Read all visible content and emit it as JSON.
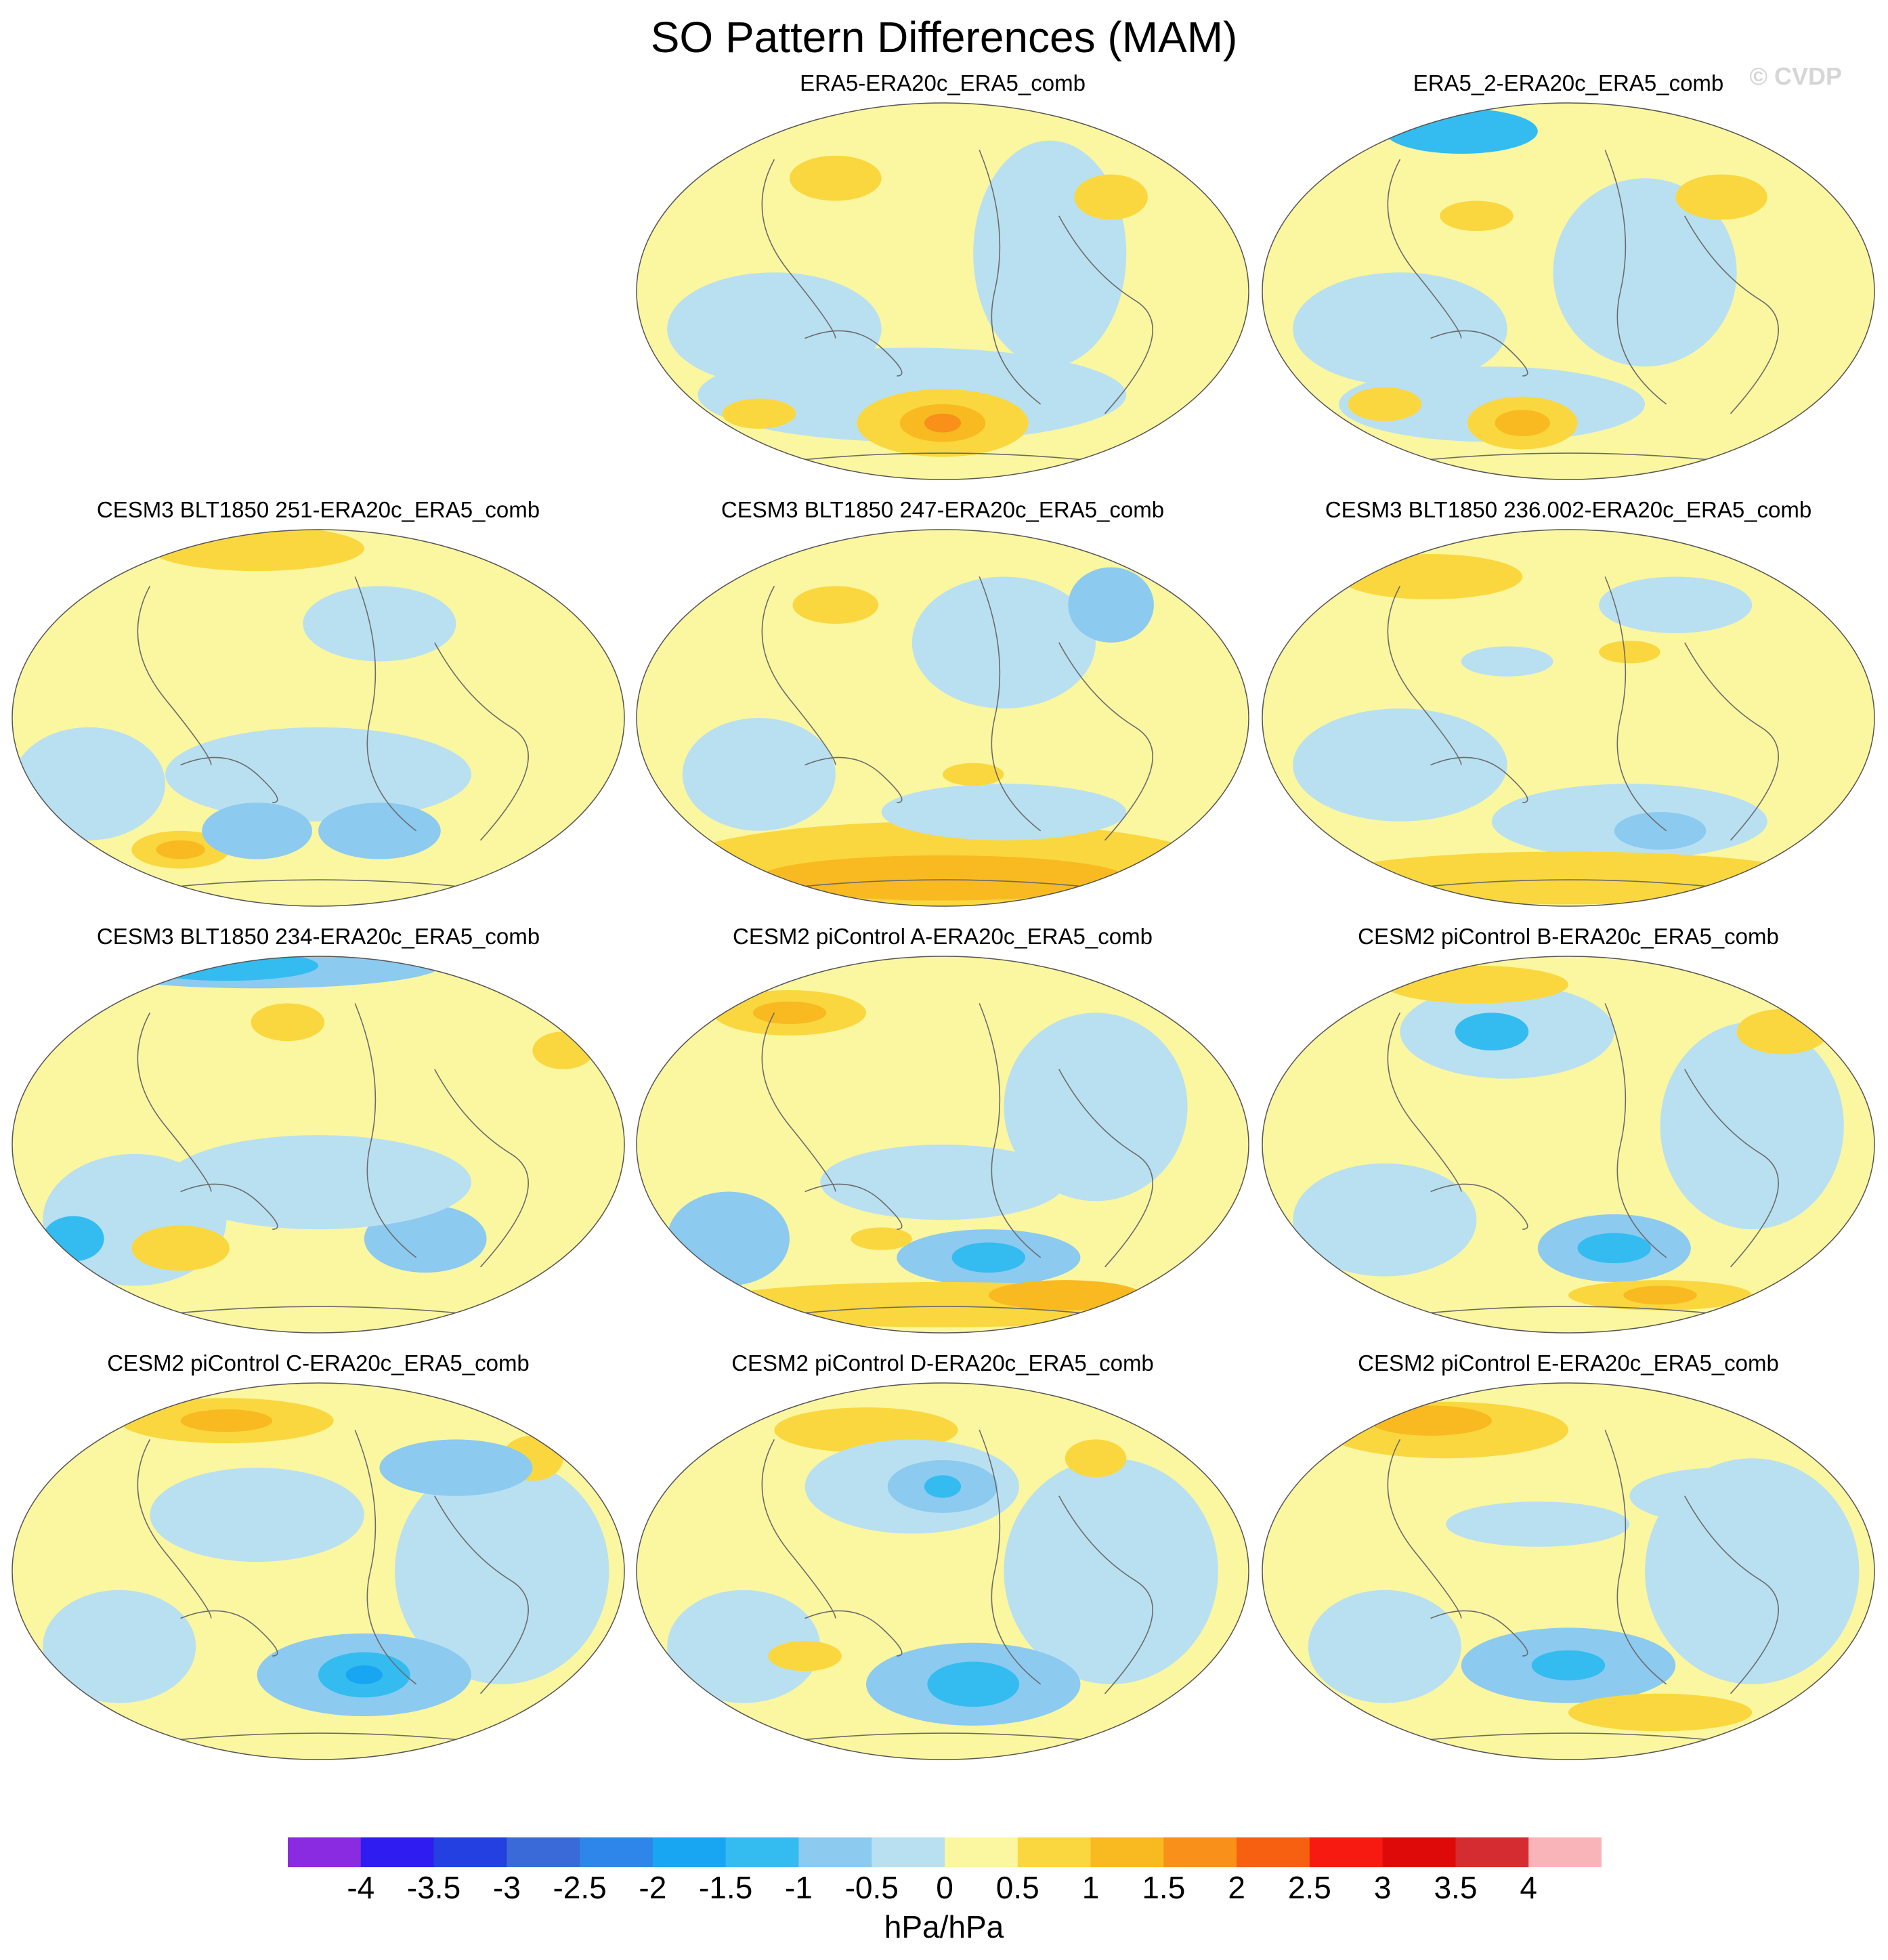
{
  "title": "SO Pattern Differences (MAM)",
  "watermark": "© CVDP",
  "panels": [
    {
      "label": "ERA5-ERA20c_ERA5_comb"
    },
    {
      "label": "ERA5_2-ERA20c_ERA5_comb"
    },
    {
      "label": "CESM3 BLT1850 251-ERA20c_ERA5_comb"
    },
    {
      "label": "CESM3 BLT1850 247-ERA20c_ERA5_comb"
    },
    {
      "label": "CESM3 BLT1850 236.002-ERA20c_ERA5_comb"
    },
    {
      "label": "CESM3 BLT1850 234-ERA20c_ERA5_comb"
    },
    {
      "label": "CESM2 piControl A-ERA20c_ERA5_comb"
    },
    {
      "label": "CESM2 piControl B-ERA20c_ERA5_comb"
    },
    {
      "label": "CESM2 piControl C-ERA20c_ERA5_comb"
    },
    {
      "label": "CESM2 piControl D-ERA20c_ERA5_comb"
    },
    {
      "label": "CESM2 piControl E-ERA20c_ERA5_comb"
    }
  ],
  "colorbar": {
    "units": "hPa/hPa",
    "labels": [
      "-4",
      "-3.5",
      "-3",
      "-2.5",
      "-2",
      "-1.5",
      "-1",
      "-0.5",
      "0",
      "0.5",
      "1",
      "1.5",
      "2",
      "2.5",
      "3",
      "3.5",
      "4"
    ],
    "colors": [
      "#8a2be2",
      "#2e1cf0",
      "#2440e0",
      "#3a6ad8",
      "#2f86ea",
      "#18a6f2",
      "#34bcf0",
      "#8ccaf0",
      "#b9e0f1",
      "#fbf6a0",
      "#fad73e",
      "#f8ba20",
      "#f8901a",
      "#f66010",
      "#f61a10",
      "#de0a0a",
      "#d42c30",
      "#f8b4b8"
    ]
  }
}
